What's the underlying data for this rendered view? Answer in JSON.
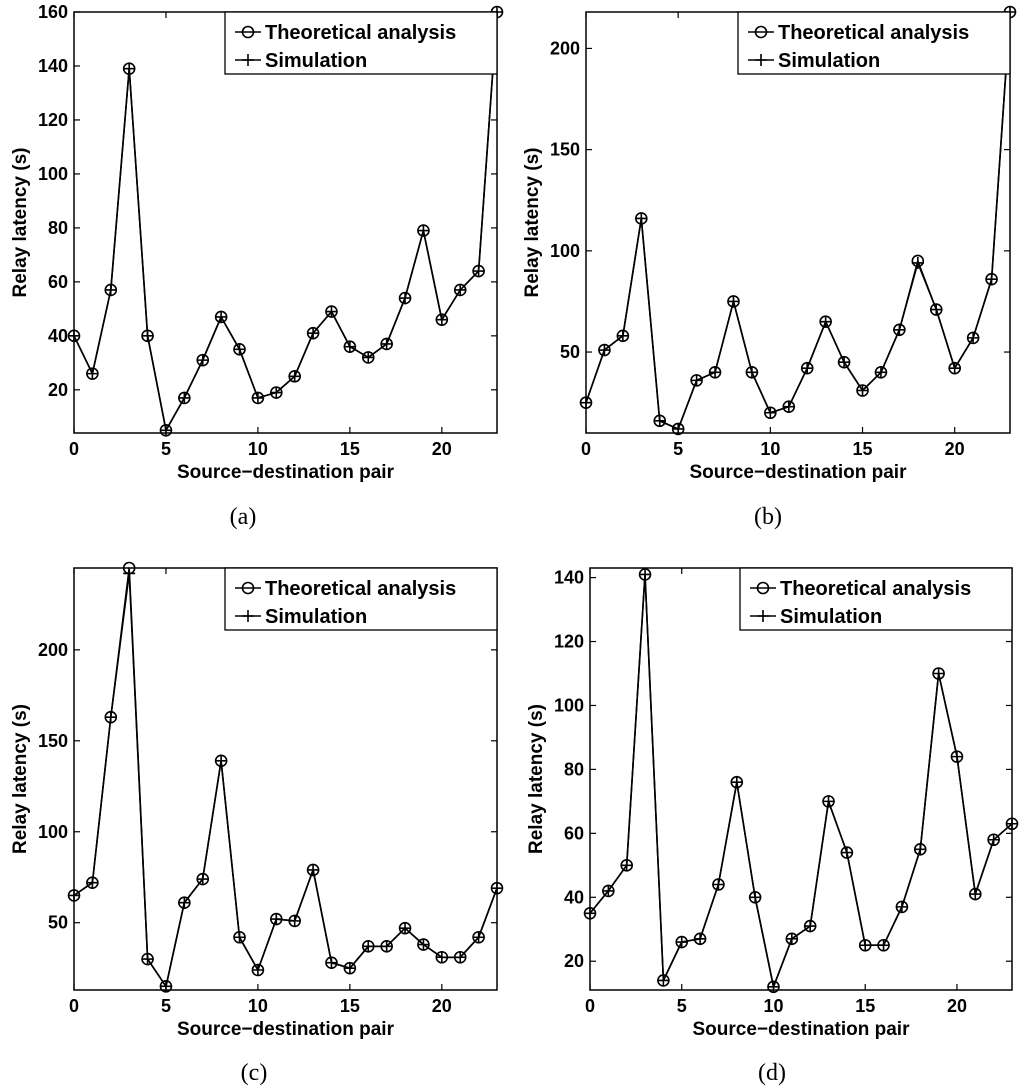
{
  "chart_data": [
    {
      "id": "a",
      "type": "line",
      "caption": "(a)",
      "xlabel": "Source−destination pair",
      "ylabel": "Relay latency (s)",
      "xlim": [
        0,
        23
      ],
      "ylim": [
        4,
        160
      ],
      "xticks": [
        0,
        5,
        10,
        15,
        20
      ],
      "yticks": [
        20,
        40,
        60,
        80,
        100,
        120,
        140,
        160
      ],
      "legend_location": "top-right",
      "x": [
        0,
        1,
        2,
        3,
        4,
        5,
        6,
        7,
        8,
        9,
        10,
        11,
        12,
        13,
        14,
        15,
        16,
        17,
        18,
        19,
        20,
        21,
        22,
        23
      ],
      "series": [
        {
          "name": "Theoretical analysis",
          "marker": "circle",
          "values": [
            40,
            26,
            57,
            139,
            40,
            5,
            17,
            31,
            47,
            35,
            17,
            19,
            25,
            41,
            49,
            36,
            32,
            37,
            54,
            79,
            46,
            57,
            64,
            160
          ]
        },
        {
          "name": "Simulation",
          "marker": "plus",
          "values": [
            40,
            26,
            57,
            139,
            40,
            5,
            17,
            31,
            47,
            35,
            17,
            19,
            25,
            41,
            49,
            36,
            32,
            37,
            54,
            79,
            46,
            57,
            64,
            160
          ]
        }
      ]
    },
    {
      "id": "b",
      "type": "line",
      "caption": "(b)",
      "xlabel": "Source−destination pair",
      "ylabel": "Relay latency (s)",
      "xlim": [
        0,
        23
      ],
      "ylim": [
        10,
        218
      ],
      "xticks": [
        0,
        5,
        10,
        15,
        20
      ],
      "yticks": [
        50,
        100,
        150,
        200
      ],
      "legend_location": "top-right",
      "x": [
        0,
        1,
        2,
        3,
        4,
        5,
        6,
        7,
        8,
        9,
        10,
        11,
        12,
        13,
        14,
        15,
        16,
        17,
        18,
        19,
        20,
        21,
        22,
        23
      ],
      "series": [
        {
          "name": "Theoretical analysis",
          "marker": "circle",
          "values": [
            25,
            51,
            58,
            116,
            16,
            12,
            36,
            40,
            75,
            40,
            20,
            23,
            42,
            65,
            45,
            31,
            40,
            61,
            95,
            71,
            42,
            57,
            86,
            218
          ]
        },
        {
          "name": "Simulation",
          "marker": "plus",
          "values": [
            25,
            51,
            58,
            116,
            16,
            12,
            36,
            40,
            75,
            40,
            20,
            23,
            42,
            65,
            45,
            31,
            40,
            61,
            94,
            71,
            42,
            57,
            86,
            218
          ]
        }
      ]
    },
    {
      "id": "c",
      "type": "line",
      "caption": "(c)",
      "xlabel": "Source−destination pair",
      "ylabel": "Relay latency (s)",
      "xlim": [
        0,
        23
      ],
      "ylim": [
        13,
        245
      ],
      "xticks": [
        0,
        5,
        10,
        15,
        20
      ],
      "yticks": [
        50,
        100,
        150,
        200
      ],
      "legend_location": "top-right",
      "x": [
        0,
        1,
        2,
        3,
        4,
        5,
        6,
        7,
        8,
        9,
        10,
        11,
        12,
        13,
        14,
        15,
        16,
        17,
        18,
        19,
        20,
        21,
        22,
        23
      ],
      "series": [
        {
          "name": "Theoretical analysis",
          "marker": "circle",
          "values": [
            65,
            72,
            163,
            245,
            30,
            15,
            61,
            74,
            139,
            42,
            24,
            52,
            51,
            79,
            28,
            25,
            37,
            37,
            47,
            38,
            31,
            31,
            42,
            69
          ]
        },
        {
          "name": "Simulation",
          "marker": "plus",
          "values": [
            65,
            72,
            163,
            242,
            30,
            15,
            61,
            74,
            139,
            42,
            24,
            52,
            51,
            79,
            28,
            25,
            37,
            37,
            47,
            38,
            31,
            31,
            42,
            69
          ]
        }
      ]
    },
    {
      "id": "d",
      "type": "line",
      "caption": "(d)",
      "xlabel": "Source−destination pair",
      "ylabel": "Relay latency (s)",
      "xlim": [
        0,
        23
      ],
      "ylim": [
        11,
        143
      ],
      "xticks": [
        0,
        5,
        10,
        15,
        20
      ],
      "yticks": [
        20,
        40,
        60,
        80,
        100,
        120,
        140
      ],
      "legend_location": "top-right",
      "x": [
        0,
        1,
        2,
        3,
        4,
        5,
        6,
        7,
        8,
        9,
        10,
        11,
        12,
        13,
        14,
        15,
        16,
        17,
        18,
        19,
        20,
        21,
        22,
        23
      ],
      "series": [
        {
          "name": "Theoretical analysis",
          "marker": "circle",
          "values": [
            35,
            42,
            50,
            141,
            14,
            26,
            27,
            44,
            76,
            40,
            12,
            27,
            31,
            70,
            54,
            25,
            25,
            37,
            55,
            110,
            84,
            41,
            58,
            63
          ]
        },
        {
          "name": "Simulation",
          "marker": "plus",
          "values": [
            35,
            42,
            50,
            141,
            14,
            26,
            27,
            44,
            76,
            40,
            12,
            27,
            31,
            70,
            54,
            25,
            25,
            37,
            55,
            110,
            84,
            41,
            58,
            63
          ]
        }
      ]
    }
  ]
}
